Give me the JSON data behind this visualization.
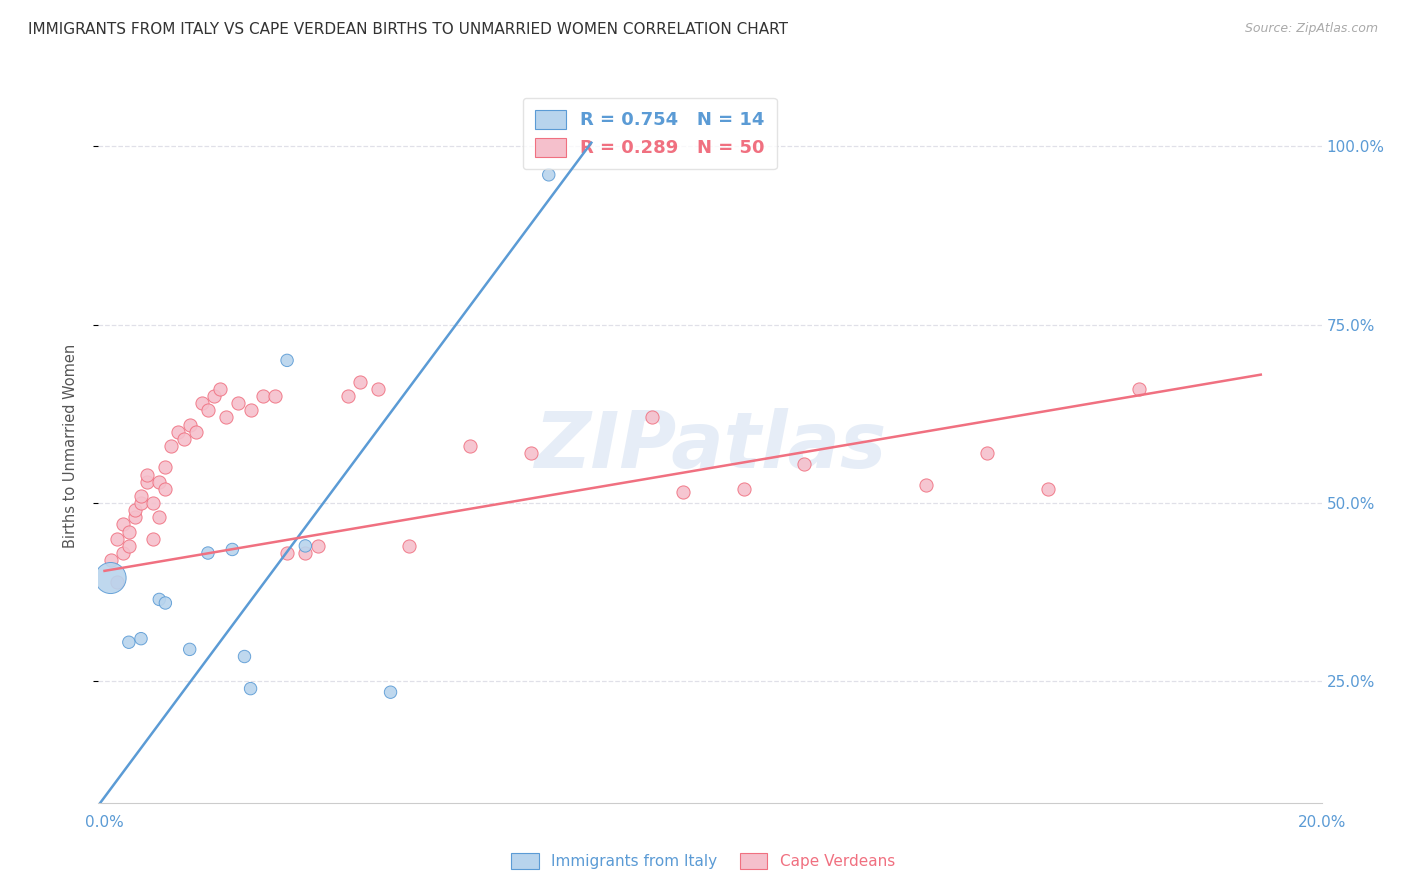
{
  "title": "IMMIGRANTS FROM ITALY VS CAPE VERDEAN BIRTHS TO UNMARRIED WOMEN CORRELATION CHART",
  "source": "Source: ZipAtlas.com",
  "ylabel": "Births to Unmarried Women",
  "legend_italy": "R = 0.754   N = 14",
  "legend_cape": "R = 0.289   N = 50",
  "italy_color": "#b8d4ed",
  "cape_color": "#f5c0cc",
  "italy_line_color": "#5b9bd5",
  "cape_line_color": "#f07080",
  "right_axis_color": "#5b9bd5",
  "watermark": "ZIPatlas",
  "italy_scatter_x": [
    0.001,
    0.004,
    0.006,
    0.009,
    0.01,
    0.014,
    0.017,
    0.021,
    0.023,
    0.024,
    0.03,
    0.033,
    0.047,
    0.073
  ],
  "italy_scatter_y": [
    0.395,
    0.305,
    0.31,
    0.365,
    0.36,
    0.295,
    0.43,
    0.435,
    0.285,
    0.24,
    0.7,
    0.44,
    0.235,
    0.96
  ],
  "italy_scatter_size": [
    500,
    80,
    80,
    80,
    80,
    80,
    80,
    80,
    80,
    80,
    80,
    80,
    80,
    80
  ],
  "cape_scatter_x": [
    0.001,
    0.002,
    0.002,
    0.003,
    0.003,
    0.004,
    0.004,
    0.005,
    0.005,
    0.006,
    0.006,
    0.007,
    0.007,
    0.008,
    0.008,
    0.009,
    0.009,
    0.01,
    0.01,
    0.011,
    0.012,
    0.013,
    0.014,
    0.015,
    0.016,
    0.017,
    0.018,
    0.019,
    0.02,
    0.022,
    0.024,
    0.026,
    0.028,
    0.03,
    0.033,
    0.035,
    0.04,
    0.042,
    0.045,
    0.05,
    0.06,
    0.07,
    0.09,
    0.095,
    0.105,
    0.115,
    0.135,
    0.145,
    0.155,
    0.17
  ],
  "cape_scatter_y": [
    0.42,
    0.45,
    0.39,
    0.43,
    0.47,
    0.46,
    0.44,
    0.48,
    0.49,
    0.5,
    0.51,
    0.53,
    0.54,
    0.45,
    0.5,
    0.48,
    0.53,
    0.55,
    0.52,
    0.58,
    0.6,
    0.59,
    0.61,
    0.6,
    0.64,
    0.63,
    0.65,
    0.66,
    0.62,
    0.64,
    0.63,
    0.65,
    0.65,
    0.43,
    0.43,
    0.44,
    0.65,
    0.67,
    0.66,
    0.44,
    0.58,
    0.57,
    0.62,
    0.515,
    0.52,
    0.555,
    0.525,
    0.57,
    0.52,
    0.66
  ],
  "italy_trend_x": [
    -0.002,
    0.08
  ],
  "italy_trend_y": [
    0.065,
    1.005
  ],
  "cape_trend_x": [
    0.0,
    0.19
  ],
  "cape_trend_y": [
    0.405,
    0.68
  ],
  "xlim": [
    -0.001,
    0.2
  ],
  "ylim": [
    0.08,
    1.08
  ],
  "xtick_vals": [
    0.0,
    0.04,
    0.08,
    0.12,
    0.16,
    0.2
  ],
  "ytick_vals": [
    0.25,
    0.5,
    0.75,
    1.0
  ],
  "grid_color": "#e0e0e8",
  "bottom_spine_color": "#cccccc"
}
